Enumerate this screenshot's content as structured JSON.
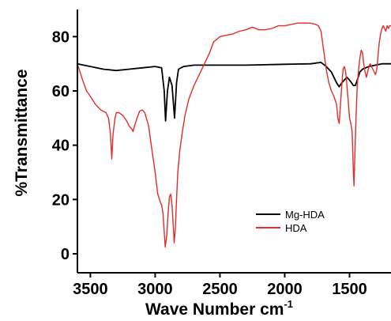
{
  "chart_data": {
    "type": "line",
    "xlabel": "Wave Number cm",
    "xlabel_sup": "-1",
    "ylabel": "%Transmittance",
    "xlim": [
      3600,
      1180
    ],
    "ylim": [
      -7,
      90
    ],
    "x_reversed": true,
    "x_ticks": [
      3500,
      3000,
      2500,
      2000,
      1500
    ],
    "y_ticks": [
      0,
      20,
      40,
      60,
      80
    ],
    "grid": false,
    "legend_position": "lower-right",
    "series": [
      {
        "name": "Mg-HDA",
        "color": "#000000",
        "points": [
          [
            3600,
            70
          ],
          [
            3500,
            69
          ],
          [
            3400,
            68
          ],
          [
            3300,
            67.5
          ],
          [
            3200,
            68
          ],
          [
            3100,
            68.5
          ],
          [
            3000,
            69
          ],
          [
            2950,
            68.5
          ],
          [
            2930,
            60
          ],
          [
            2920,
            49
          ],
          [
            2905,
            60
          ],
          [
            2890,
            65
          ],
          [
            2870,
            62
          ],
          [
            2850,
            50
          ],
          [
            2835,
            63
          ],
          [
            2820,
            68
          ],
          [
            2780,
            69
          ],
          [
            2700,
            69.5
          ],
          [
            2500,
            69.5
          ],
          [
            2300,
            69.5
          ],
          [
            2000,
            69.8
          ],
          [
            1800,
            70
          ],
          [
            1720,
            70.5
          ],
          [
            1680,
            69
          ],
          [
            1640,
            67
          ],
          [
            1600,
            63
          ],
          [
            1580,
            61.5
          ],
          [
            1560,
            63
          ],
          [
            1540,
            64
          ],
          [
            1520,
            65
          ],
          [
            1500,
            64
          ],
          [
            1470,
            62
          ],
          [
            1455,
            62
          ],
          [
            1440,
            64
          ],
          [
            1420,
            67
          ],
          [
            1400,
            68
          ],
          [
            1350,
            69
          ],
          [
            1300,
            69.5
          ],
          [
            1250,
            70
          ],
          [
            1180,
            70
          ]
        ]
      },
      {
        "name": "HDA",
        "color": "#e52b2b",
        "points": [
          [
            3600,
            70
          ],
          [
            3580,
            67
          ],
          [
            3560,
            64
          ],
          [
            3530,
            60
          ],
          [
            3500,
            58
          ],
          [
            3460,
            55
          ],
          [
            3420,
            53
          ],
          [
            3380,
            52
          ],
          [
            3360,
            50
          ],
          [
            3345,
            44
          ],
          [
            3335,
            35
          ],
          [
            3325,
            44
          ],
          [
            3310,
            50
          ],
          [
            3300,
            52
          ],
          [
            3280,
            52
          ],
          [
            3250,
            51
          ],
          [
            3220,
            49
          ],
          [
            3200,
            47
          ],
          [
            3180,
            46
          ],
          [
            3170,
            45
          ],
          [
            3160,
            47
          ],
          [
            3140,
            50
          ],
          [
            3120,
            52.5
          ],
          [
            3100,
            53
          ],
          [
            3080,
            52
          ],
          [
            3050,
            47
          ],
          [
            3030,
            40
          ],
          [
            3000,
            30
          ],
          [
            2980,
            22
          ],
          [
            2960,
            19
          ],
          [
            2950,
            18
          ],
          [
            2940,
            15
          ],
          [
            2930,
            8
          ],
          [
            2922,
            2.5
          ],
          [
            2910,
            7
          ],
          [
            2900,
            15
          ],
          [
            2890,
            21
          ],
          [
            2880,
            22
          ],
          [
            2870,
            18
          ],
          [
            2860,
            10
          ],
          [
            2853,
            4
          ],
          [
            2845,
            9
          ],
          [
            2835,
            20
          ],
          [
            2825,
            30
          ],
          [
            2810,
            38
          ],
          [
            2790,
            45
          ],
          [
            2770,
            51
          ],
          [
            2740,
            57
          ],
          [
            2700,
            62
          ],
          [
            2660,
            66
          ],
          [
            2620,
            70
          ],
          [
            2580,
            74
          ],
          [
            2550,
            78
          ],
          [
            2500,
            80
          ],
          [
            2450,
            80.5
          ],
          [
            2400,
            81
          ],
          [
            2350,
            82
          ],
          [
            2300,
            82.5
          ],
          [
            2250,
            83.5
          ],
          [
            2200,
            82.5
          ],
          [
            2150,
            82.5
          ],
          [
            2100,
            83
          ],
          [
            2050,
            84
          ],
          [
            2000,
            84
          ],
          [
            1950,
            84.5
          ],
          [
            1900,
            85
          ],
          [
            1850,
            85
          ],
          [
            1800,
            85
          ],
          [
            1760,
            84.5
          ],
          [
            1740,
            84
          ],
          [
            1720,
            82
          ],
          [
            1700,
            75
          ],
          [
            1680,
            68
          ],
          [
            1660,
            63
          ],
          [
            1640,
            60
          ],
          [
            1620,
            58
          ],
          [
            1600,
            55
          ],
          [
            1590,
            50
          ],
          [
            1580,
            48
          ],
          [
            1570,
            55
          ],
          [
            1560,
            62
          ],
          [
            1550,
            68
          ],
          [
            1540,
            69
          ],
          [
            1530,
            67
          ],
          [
            1520,
            62
          ],
          [
            1510,
            56
          ],
          [
            1500,
            50
          ],
          [
            1490,
            48
          ],
          [
            1480,
            45
          ],
          [
            1470,
            30
          ],
          [
            1465,
            25
          ],
          [
            1460,
            35
          ],
          [
            1450,
            50
          ],
          [
            1440,
            62
          ],
          [
            1430,
            68
          ],
          [
            1420,
            72
          ],
          [
            1410,
            75
          ],
          [
            1400,
            74
          ],
          [
            1390,
            70
          ],
          [
            1380,
            67
          ],
          [
            1370,
            65
          ],
          [
            1360,
            67
          ],
          [
            1350,
            69
          ],
          [
            1340,
            70
          ],
          [
            1330,
            69
          ],
          [
            1320,
            68
          ],
          [
            1310,
            67
          ],
          [
            1300,
            66
          ],
          [
            1290,
            68
          ],
          [
            1280,
            73
          ],
          [
            1270,
            78
          ],
          [
            1260,
            81
          ],
          [
            1250,
            83
          ],
          [
            1240,
            84
          ],
          [
            1230,
            83
          ],
          [
            1220,
            82
          ],
          [
            1210,
            84
          ],
          [
            1200,
            83
          ],
          [
            1190,
            84
          ],
          [
            1180,
            84
          ]
        ]
      }
    ]
  }
}
